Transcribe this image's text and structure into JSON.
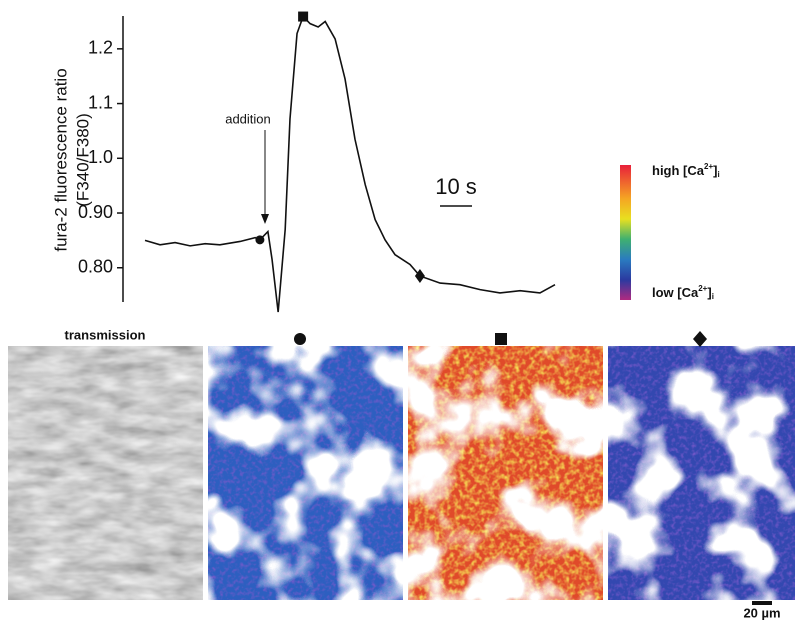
{
  "chart_data": {
    "type": "line",
    "y_label": [
      "fura-2 fluorescence ratio",
      "(F340/F380)"
    ],
    "x": [
      0,
      4.7,
      9.4,
      14.1,
      18.8,
      23.4,
      29.7,
      34.4,
      35.9,
      38.4,
      39.7,
      41.6,
      43.8,
      45.3,
      47.5,
      49.4,
      51.6,
      54.1,
      56.3,
      59.4,
      62.5,
      65.6,
      68.8,
      71.9,
      75,
      78.1,
      82.8,
      85.9,
      92.2,
      98.4,
      104.7,
      110.9,
      117.2,
      123.4,
      128.1
    ],
    "series": [
      {
        "color": "#111111",
        "values": [
          0.85,
          0.842,
          0.846,
          0.84,
          0.844,
          0.842,
          0.848,
          0.855,
          0.851,
          0.866,
          0.815,
          0.719,
          0.87,
          1.072,
          1.228,
          1.259,
          1.246,
          1.24,
          1.25,
          1.218,
          1.145,
          1.035,
          0.952,
          0.888,
          0.851,
          0.824,
          0.806,
          0.785,
          0.772,
          0.769,
          0.76,
          0.754,
          0.758,
          0.754,
          0.769
        ]
      }
    ],
    "markers": [
      {
        "index": 8,
        "shape": "circle"
      },
      {
        "index": 15,
        "shape": "square"
      },
      {
        "index": 27,
        "shape": "diamond"
      }
    ],
    "xlim": [
      0,
      128.1
    ],
    "ylim": [
      0.71,
      1.26
    ],
    "yticks": [
      {
        "value": 0.8,
        "label": "0.80"
      },
      {
        "value": 0.9,
        "label": "0.90"
      },
      {
        "value": 1.0,
        "label": "1.0"
      },
      1.1,
      1.2
    ],
    "annotation": "addition",
    "scale_bar": {
      "label": "10 s",
      "value": 10
    }
  },
  "colorbar": {
    "high": {
      "text": "high [Ca",
      "sup": "2+",
      "close": "]",
      "sub": "i"
    },
    "low": {
      "text": "low [Ca",
      "sup": "2+",
      "close": "]",
      "sub": "i"
    }
  },
  "panels": {
    "transmission": "transmission",
    "scale": "20 µm"
  }
}
